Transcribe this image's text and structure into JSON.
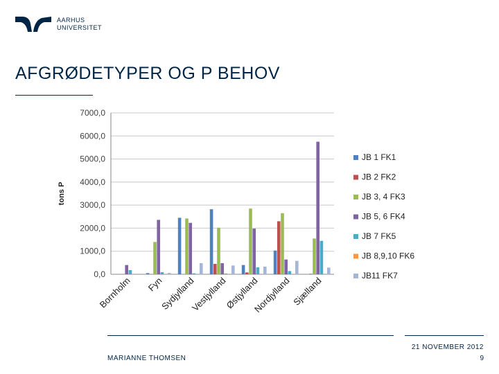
{
  "header": {
    "logo_line1": "AARHUS",
    "logo_line2": "UNIVERSITET",
    "title": "AFGRØDETYPER OG P BEHOV"
  },
  "footer": {
    "author": "MARIANNE THOMSEN",
    "date": "21 NOVEMBER 2012",
    "page": "9"
  },
  "colors": {
    "brand": "#002546",
    "JB 1 FK1": "#4f81bd",
    "JB 2 FK2": "#c0504d",
    "JB 3, 4 FK3": "#9bbb59",
    "JB 5, 6 FK4": "#8064a2",
    "JB 7 FK5": "#4bacc6",
    "JB 8,9,10 FK6": "#f79646",
    "JB11 FK7": "#a5b6d6"
  },
  "chart_data": {
    "type": "bar",
    "title": "",
    "xlabel": "",
    "ylabel": "tons P",
    "ylim": [
      0,
      7000
    ],
    "yticks": [
      0,
      1000,
      2000,
      3000,
      4000,
      5000,
      6000,
      7000
    ],
    "ytick_labels": [
      "0,0",
      "1000,0",
      "2000,0",
      "3000,0",
      "4000,0",
      "5000,0",
      "6000,0",
      "7000,0"
    ],
    "categories": [
      "Bornholm",
      "Fyn",
      "Sydjylland",
      "Vestjylland",
      "Østjylland",
      "Nordjylland",
      "Sjælland"
    ],
    "legend_position": "right",
    "series": [
      {
        "name": "JB 1 FK1",
        "values": [
          0,
          50,
          2450,
          2820,
          400,
          1030,
          0
        ]
      },
      {
        "name": "JB 2 FK2",
        "values": [
          0,
          0,
          0,
          450,
          80,
          2300,
          20
        ]
      },
      {
        "name": "JB 3, 4 FK3",
        "values": [
          0,
          1400,
          2420,
          2020,
          2850,
          2650,
          1550
        ]
      },
      {
        "name": "JB 5, 6 FK4",
        "values": [
          400,
          2360,
          2230,
          480,
          1980,
          640,
          5750
        ]
      },
      {
        "name": "JB 7 FK5",
        "values": [
          180,
          90,
          40,
          30,
          300,
          140,
          1450
        ]
      },
      {
        "name": "JB 8,9,10 FK6",
        "values": [
          0,
          0,
          0,
          0,
          0,
          0,
          0
        ]
      },
      {
        "name": "JB11 FK7",
        "values": [
          0,
          60,
          480,
          380,
          330,
          580,
          290
        ]
      }
    ]
  }
}
